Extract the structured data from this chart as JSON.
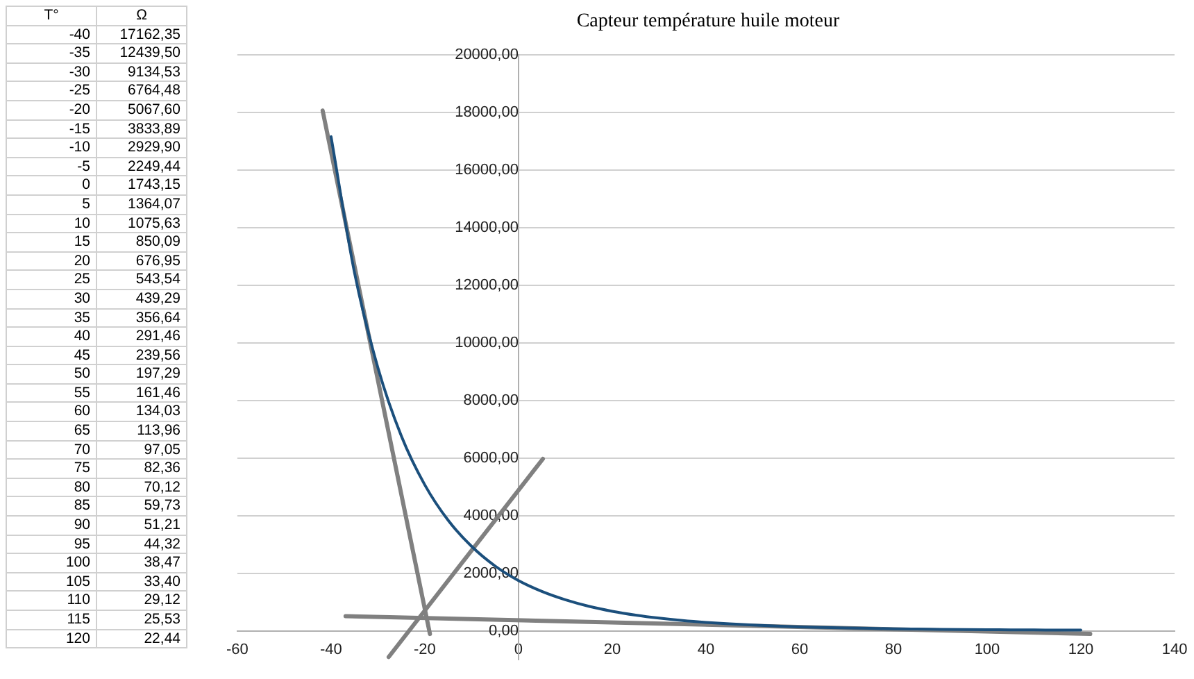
{
  "chart_data": {
    "type": "line",
    "title": "Capteur température huile moteur",
    "annotations": [
      "T°",
      "Ω",
      "-40",
      "17162,35",
      "-35",
      "12439,50",
      "-30",
      "9134,53",
      "-25",
      "6764,48",
      "-20",
      "5067,60",
      "-15",
      "3833,89",
      "-10",
      "2929,90",
      "-5",
      "2249,44",
      "0",
      "1743,15",
      "5",
      "1364,07",
      "10",
      "1075,63",
      "15",
      "850,09",
      "20",
      "676,95",
      "25",
      "543,54",
      "30",
      "439,29",
      "35",
      "356,64",
      "40",
      "291,46",
      "45",
      "239,56",
      "50",
      "197,29",
      "55",
      "161,46",
      "60",
      "134,03",
      "65",
      "113,96",
      "70",
      "97,05",
      "75",
      "82,36",
      "80",
      "70,12",
      "85",
      "59,73",
      "90",
      "51,21",
      "95",
      "44,32",
      "100",
      "38,47",
      "105",
      "33,40",
      "110",
      "29,12",
      "115",
      "25,53",
      "120",
      "22,44"
    ],
    "x": [
      -40,
      -35,
      -30,
      -25,
      -20,
      -15,
      -10,
      -5,
      0,
      5,
      10,
      15,
      20,
      25,
      30,
      35,
      40,
      45,
      50,
      55,
      60,
      65,
      70,
      75,
      80,
      85,
      90,
      95,
      100,
      105,
      110,
      115,
      120
    ],
    "series": [
      {
        "color": "#1b4f7c",
        "values": [
          17162.35,
          12439.5,
          9134.53,
          6764.48,
          5067.6,
          3833.89,
          2929.9,
          2249.44,
          1743.15,
          1364.07,
          1075.63,
          850.09,
          676.95,
          543.54,
          439.29,
          356.64,
          291.46,
          239.56,
          197.29,
          161.46,
          134.03,
          113.96,
          97.05,
          82.36,
          70.12,
          59.73,
          51.21,
          44.32,
          38.47,
          33.4,
          29.12,
          25.53,
          22.44
        ]
      },
      {
        "type": "line",
        "color": "#808080",
        "x": [
          -41.8,
          -18.9
        ],
        "values": [
          18070,
          -110
        ]
      },
      {
        "type": "line",
        "color": "#808080",
        "x": [
          -27.7,
          5.2
        ],
        "values": [
          -910,
          5970
        ]
      },
      {
        "type": "line",
        "color": "#808080",
        "x": [
          -36.9,
          122
        ],
        "values": [
          510,
          -110
        ]
      }
    ],
    "xlim": [
      -60,
      140
    ],
    "xticks": [
      -60,
      -40,
      -20,
      0,
      20,
      40,
      60,
      80,
      100,
      120,
      140
    ],
    "ylim": [
      -1000,
      20000
    ],
    "yticks": [
      {
        "value": 0,
        "label": "0,00"
      },
      {
        "value": 2000,
        "label": "2000,00"
      },
      {
        "value": 4000,
        "label": "4000,00"
      },
      {
        "value": 6000,
        "label": "6000,00"
      },
      {
        "value": 8000,
        "label": "8000,00"
      },
      {
        "value": 10000,
        "label": "10000,00"
      },
      {
        "value": 12000,
        "label": "12000,00"
      },
      {
        "value": 14000,
        "label": "14000,00"
      },
      {
        "value": 16000,
        "label": "16000,00"
      },
      {
        "value": 18000,
        "label": "18000,00"
      },
      {
        "value": 20000,
        "label": "20000,00"
      }
    ],
    "grid": "y",
    "marker": "none"
  }
}
